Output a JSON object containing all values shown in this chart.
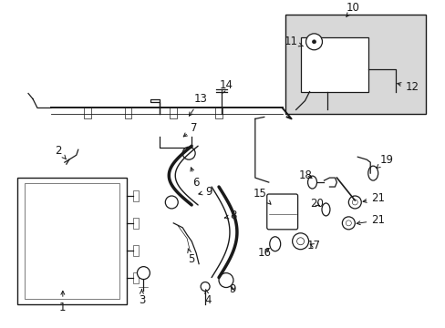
{
  "bg_color": "#ffffff",
  "line_color": "#1a1a1a",
  "fig_width": 4.89,
  "fig_height": 3.6,
  "dpi": 100,
  "box_fill": "#d8d8d8",
  "label_fontsize": 8.5
}
